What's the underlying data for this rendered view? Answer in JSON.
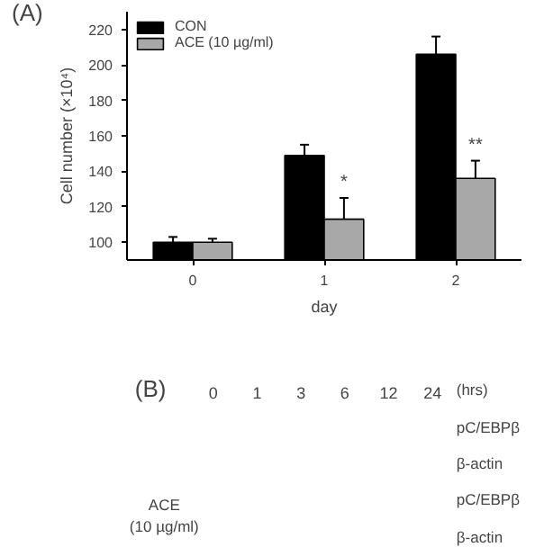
{
  "chart_data": [
    {
      "type": "bar",
      "title": "(A)",
      "xlabel": "day",
      "ylabel": "Cell number (×10⁴)",
      "categories": [
        "0",
        "1",
        "2"
      ],
      "series": [
        {
          "name": "CON",
          "color": "#000000",
          "values": [
            100,
            149,
            206
          ],
          "errors": [
            3,
            6,
            10
          ]
        },
        {
          "name": "ACE (10 µg/ml)",
          "color": "#a8a8a8",
          "values": [
            100,
            113,
            136
          ],
          "errors": [
            2,
            12,
            10
          ]
        }
      ],
      "ylim": [
        90,
        230
      ],
      "yticks": [
        100,
        120,
        140,
        160,
        180,
        200,
        220
      ],
      "legend": "top left",
      "annotations": [
        {
          "text": "*",
          "x": "1",
          "y": 128
        },
        {
          "text": "**",
          "x": "2",
          "y": 149
        }
      ]
    },
    {
      "type": "other",
      "title": "(B)",
      "categories": [
        "0",
        "1",
        "3",
        "6",
        "12",
        "24"
      ],
      "annotations": [
        "(hrs)",
        "pC/EBPβ",
        "β-actin",
        "pC/EBPβ",
        "β-actin",
        "ACE",
        "(10 µg/ml)"
      ]
    }
  ]
}
